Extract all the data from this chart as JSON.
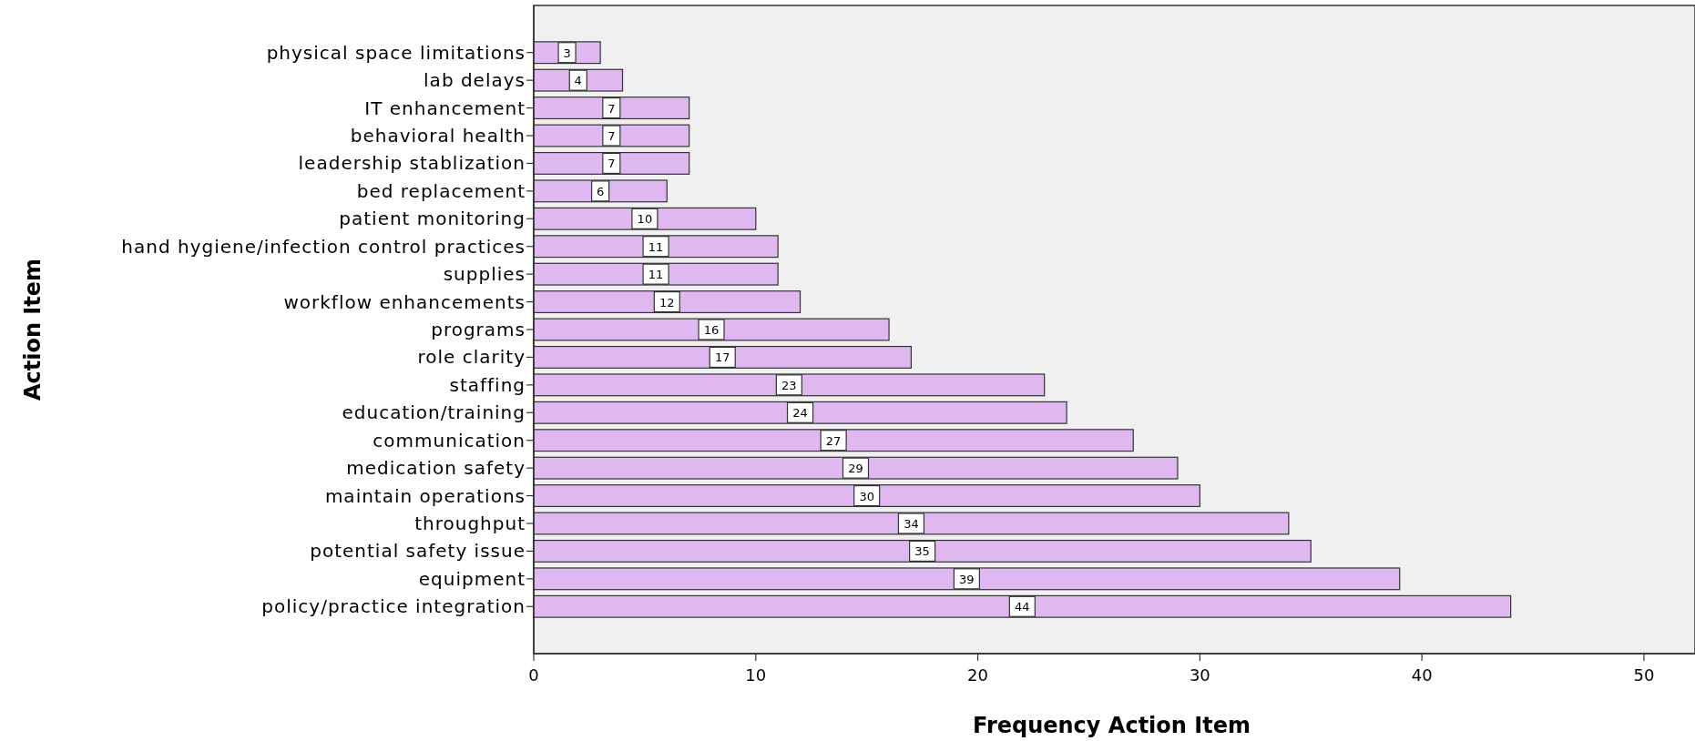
{
  "chart_data": {
    "type": "bar",
    "orientation": "horizontal",
    "xlabel": "Frequency Action Item",
    "ylabel": "Action Item",
    "categories": [
      "physical space limitations",
      "lab delays",
      "IT enhancement",
      "behavioral health",
      "leadership stablization",
      "bed replacement",
      "patient monitoring",
      "hand hygiene/infection control practices",
      "supplies",
      "workflow enhancements",
      "programs",
      "role clarity",
      "staffing",
      "education/training",
      "communication",
      "medication safety",
      "maintain operations",
      "throughput",
      "potential safety issue",
      "equipment",
      "policy/practice integration"
    ],
    "values": [
      3,
      4,
      7,
      7,
      7,
      6,
      10,
      11,
      11,
      12,
      16,
      17,
      23,
      24,
      27,
      29,
      30,
      34,
      35,
      39,
      44
    ],
    "color": "#dfb8f2",
    "data_labels": true,
    "xlim": [
      0,
      52.3
    ],
    "xticks": [
      0,
      10,
      20,
      30,
      40,
      50
    ],
    "grid": false
  }
}
